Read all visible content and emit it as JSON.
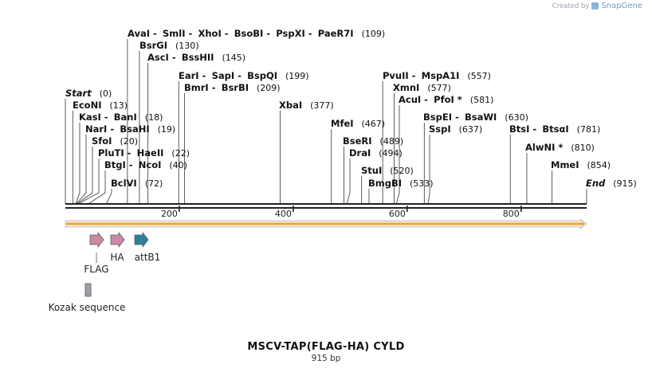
{
  "credit": {
    "prefix": "Created by",
    "brand": "SnapGene"
  },
  "title": "MSCV-TAP(FLAG-HA) CYLD",
  "length_label": "915 bp",
  "sequence_length": 915,
  "axis_ticks": [
    {
      "value": 200,
      "label": "200"
    },
    {
      "value": 400,
      "label": "400"
    },
    {
      "value": 600,
      "label": "600"
    },
    {
      "value": 800,
      "label": "800"
    }
  ],
  "sites": [
    {
      "names": [
        "AvaI",
        "SmlI",
        "XhoI",
        "BsoBI",
        "PspXI",
        "PaeR7I"
      ],
      "pos_label": "(109)",
      "pos": 109
    },
    {
      "names": [
        "BsrGI"
      ],
      "pos_label": "(130)",
      "pos": 130
    },
    {
      "names": [
        "AscI",
        "BssHII"
      ],
      "pos_label": "(145)",
      "pos": 145
    },
    {
      "names": [
        "EarI",
        "SapI",
        "BspQI"
      ],
      "pos_label": "(199)",
      "pos": 199
    },
    {
      "names": [
        "BmrI",
        "BsrBI"
      ],
      "pos_label": "(209)",
      "pos": 209
    },
    {
      "names": [
        "Start"
      ],
      "pos_label": "(0)",
      "pos": 0,
      "italic": true
    },
    {
      "names": [
        "EcoNI"
      ],
      "pos_label": "(13)",
      "pos": 13
    },
    {
      "names": [
        "KasI",
        "BanI"
      ],
      "pos_label": "(18)",
      "pos": 18
    },
    {
      "names": [
        "NarI",
        "BsaHI"
      ],
      "pos_label": "(19)",
      "pos": 19
    },
    {
      "names": [
        "SfoI"
      ],
      "pos_label": "(20)",
      "pos": 20
    },
    {
      "names": [
        "PluTI",
        "HaeII"
      ],
      "pos_label": "(22)",
      "pos": 22
    },
    {
      "names": [
        "BtgI",
        "NcoI"
      ],
      "pos_label": "(40)",
      "pos": 40
    },
    {
      "names": [
        "BclVI"
      ],
      "pos_label": "(72)",
      "pos": 72
    },
    {
      "names": [
        "XbaI"
      ],
      "pos_label": "(377)",
      "pos": 377
    },
    {
      "names": [
        "MfeI"
      ],
      "pos_label": "(467)",
      "pos": 467
    },
    {
      "names": [
        "BseRI"
      ],
      "pos_label": "(489)",
      "pos": 489
    },
    {
      "names": [
        "DraI"
      ],
      "pos_label": "(494)",
      "pos": 494
    },
    {
      "names": [
        "StuI"
      ],
      "pos_label": "(520)",
      "pos": 520
    },
    {
      "names": [
        "BmgBI"
      ],
      "pos_label": "(533)",
      "pos": 533
    },
    {
      "names": [
        "PvuII",
        "MspA1I"
      ],
      "pos_label": "(557)",
      "pos": 557
    },
    {
      "names": [
        "XmnI"
      ],
      "pos_label": "(577)",
      "pos": 577
    },
    {
      "names": [
        "AcuI",
        "PfoI *"
      ],
      "pos_label": "(581)",
      "pos": 581
    },
    {
      "names": [
        "BspEI",
        "BsaWI"
      ],
      "pos_label": "(630)",
      "pos": 630
    },
    {
      "names": [
        "SspI"
      ],
      "pos_label": "(637)",
      "pos": 637
    },
    {
      "names": [
        "BtsI",
        "BtsαI"
      ],
      "pos_label": "(781)",
      "pos": 781
    },
    {
      "names": [
        "AlwNI *"
      ],
      "pos_label": "(810)",
      "pos": 810
    },
    {
      "names": [
        "MmeI"
      ],
      "pos_label": "(854)",
      "pos": 854
    },
    {
      "names": [
        "End"
      ],
      "pos_label": "(915)",
      "pos": 915,
      "italic": true
    }
  ],
  "features": [
    {
      "name": "FLAG",
      "color": "#c98aa8",
      "direction": "forward"
    },
    {
      "name": "HA",
      "color": "#c98aa8",
      "direction": "forward"
    },
    {
      "name": "attB1",
      "color": "#2e7f99",
      "direction": "forward"
    },
    {
      "name": "Kozak sequence",
      "color": "#9aa0a6",
      "direction": "none"
    }
  ],
  "colors": {
    "backbone": "#222222",
    "orf_fill": "#e8a33a",
    "orf_outline": "#c8c8c8",
    "leader_line": "#333333"
  }
}
